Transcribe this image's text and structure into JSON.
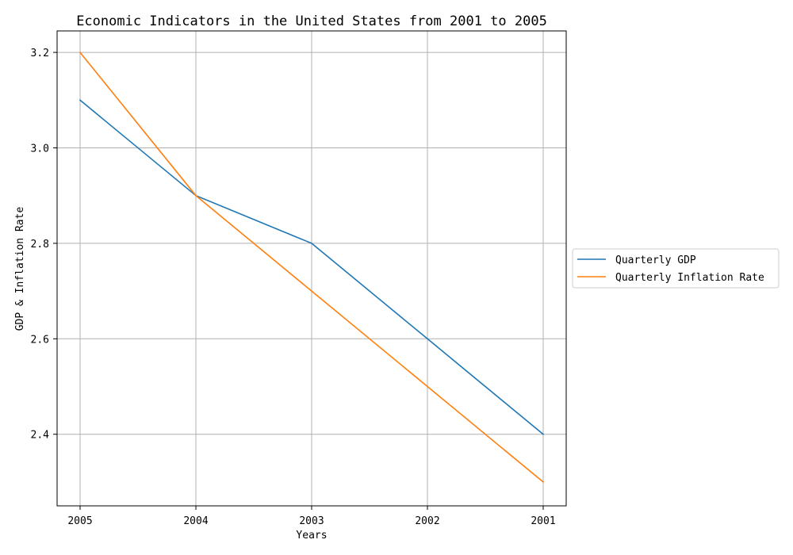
{
  "chart_data": {
    "type": "line",
    "title": "Economic Indicators in the United States from 2001 to 2005",
    "xlabel": "Years",
    "ylabel": "GDP & Inflation Rate",
    "categories": [
      "2005",
      "2004",
      "2003",
      "2002",
      "2001"
    ],
    "series": [
      {
        "name": "Quarterly GDP",
        "values": [
          3.1,
          2.9,
          2.8,
          2.6,
          2.4
        ],
        "color": "#1f77b4"
      },
      {
        "name": "Quarterly Inflation Rate",
        "values": [
          3.2,
          2.9,
          2.7,
          2.5,
          2.3
        ],
        "color": "#ff7f0e"
      }
    ],
    "ylim": [
      2.25,
      3.245
    ],
    "yticks": [
      2.4,
      2.6,
      2.8,
      3.0,
      3.2
    ],
    "ytick_labels": [
      "2.4",
      "2.6",
      "2.8",
      "3.0",
      "3.2"
    ],
    "grid": true,
    "legend_position": "outside-right"
  }
}
